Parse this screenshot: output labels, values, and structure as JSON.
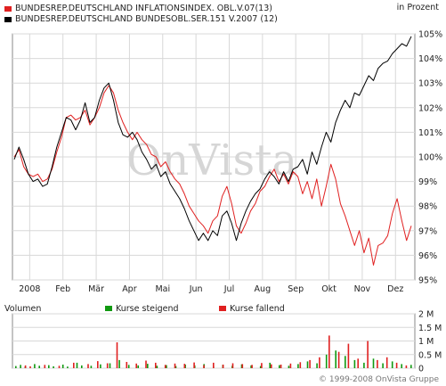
{
  "header": {
    "unit_label": "in Prozent"
  },
  "legend": [
    {
      "label": "BUNDESREP.DEUTSCHLAND INFLATIONSINDEX. OBL.V.07(13)",
      "color": "#e02020"
    },
    {
      "label": "BUNDESREP.DEUTSCHLAND BUNDESOBL.SER.151 V.2007 (12)",
      "color": "#000000"
    }
  ],
  "watermark": "OnVista",
  "volume_panel": {
    "title": "Volumen",
    "rising_label": "Kurse steigend",
    "falling_label": "Kurse fallend",
    "rising_color": "#119911",
    "falling_color": "#e02020"
  },
  "copyright": "© 1999-2008 OnVista Gruppe",
  "chart_data": [
    {
      "type": "line",
      "ylabel": "in Prozent",
      "ylim": [
        95,
        105
      ],
      "y_ticks": [
        "95%",
        "96%",
        "97%",
        "98%",
        "99%",
        "100%",
        "101%",
        "102%",
        "103%",
        "104%",
        "105%"
      ],
      "x_ticks": [
        "2008",
        "Feb",
        "Mär",
        "Apr",
        "Mai",
        "Jun",
        "Jul",
        "Aug",
        "Sep",
        "Okt",
        "Nov",
        "Dez"
      ],
      "grid": true,
      "series": [
        {
          "name": "BUNDESREP.DEUTSCHLAND INFLATIONSINDEX. OBL.V.07(13)",
          "color": "#e02020",
          "values": [
            100.0,
            100.3,
            99.6,
            99.3,
            99.2,
            99.3,
            99.0,
            99.1,
            99.5,
            100.2,
            100.8,
            101.6,
            101.7,
            101.5,
            101.6,
            101.9,
            101.3,
            101.6,
            102.0,
            102.6,
            102.9,
            102.6,
            101.9,
            101.4,
            101.0,
            100.7,
            101.0,
            100.7,
            100.5,
            100.1,
            100.0,
            99.6,
            99.8,
            99.4,
            99.1,
            98.9,
            98.5,
            98.0,
            97.7,
            97.4,
            97.2,
            96.9,
            97.4,
            97.6,
            98.4,
            98.8,
            98.1,
            97.2,
            96.9,
            97.3,
            97.8,
            98.1,
            98.6,
            98.8,
            99.2,
            99.5,
            99.0,
            99.3,
            98.9,
            99.4,
            99.2,
            98.5,
            99.0,
            98.3,
            99.1,
            98.0,
            98.8,
            99.7,
            99.1,
            98.1,
            97.6,
            97.0,
            96.4,
            97.0,
            96.1,
            96.7,
            95.6,
            96.4,
            96.5,
            96.8,
            97.7,
            98.3,
            97.4,
            96.6,
            97.2
          ]
        },
        {
          "name": "BUNDESREP.DEUTSCHLAND BUNDESOBL.SER.151 V.2007 (12)",
          "color": "#000000",
          "values": [
            99.9,
            100.4,
            99.9,
            99.3,
            99.0,
            99.1,
            98.8,
            98.9,
            99.6,
            100.4,
            101.0,
            101.6,
            101.5,
            101.1,
            101.5,
            102.2,
            101.4,
            101.6,
            102.3,
            102.8,
            103.0,
            102.3,
            101.4,
            100.9,
            100.8,
            101.0,
            100.7,
            100.2,
            99.9,
            99.5,
            99.7,
            99.2,
            99.4,
            98.9,
            98.6,
            98.3,
            97.9,
            97.4,
            97.0,
            96.6,
            96.9,
            96.6,
            97.0,
            96.8,
            97.6,
            97.8,
            97.3,
            96.6,
            97.3,
            97.8,
            98.2,
            98.5,
            98.7,
            99.1,
            99.4,
            99.2,
            98.9,
            99.4,
            99.0,
            99.5,
            99.6,
            99.9,
            99.3,
            100.2,
            99.7,
            100.4,
            101.0,
            100.6,
            101.4,
            101.9,
            102.3,
            102.0,
            102.6,
            102.5,
            102.9,
            103.3,
            103.1,
            103.6,
            103.8,
            103.9,
            104.2,
            104.4,
            104.6,
            104.5,
            104.9
          ]
        }
      ]
    },
    {
      "type": "bar",
      "ylabel": "Volumen",
      "ylim": [
        0,
        2000000
      ],
      "y_ticks": [
        "0",
        "0.5 M",
        "1 M",
        "1.5 M",
        "2 M"
      ],
      "series": [
        {
          "name": "Kurse steigend",
          "color": "#119911",
          "values": [
            80000,
            120000,
            60000,
            0,
            150000,
            90000,
            0,
            110000,
            70000,
            0,
            130000,
            60000,
            0,
            200000,
            100000,
            0,
            90000,
            0,
            140000,
            0,
            180000,
            0,
            300000,
            0,
            120000,
            0,
            100000,
            0,
            160000,
            0,
            90000,
            0,
            110000,
            0,
            80000,
            0,
            130000,
            0,
            100000,
            0,
            150000,
            0,
            70000,
            0,
            120000,
            0,
            90000,
            0,
            140000,
            0,
            100000,
            0,
            80000,
            0,
            200000,
            0,
            110000,
            0,
            90000,
            0,
            150000,
            0,
            250000,
            0,
            180000,
            0,
            500000,
            0,
            650000,
            0,
            450000,
            0,
            300000,
            0,
            200000,
            0,
            350000,
            0,
            180000,
            0,
            250000,
            0,
            150000,
            0,
            120000
          ]
        },
        {
          "name": "Kurse fallend",
          "color": "#e02020",
          "values": [
            0,
            0,
            100000,
            70000,
            0,
            0,
            120000,
            0,
            0,
            90000,
            0,
            0,
            200000,
            0,
            0,
            150000,
            0,
            260000,
            0,
            180000,
            0,
            950000,
            0,
            230000,
            0,
            170000,
            0,
            280000,
            0,
            200000,
            0,
            120000,
            0,
            170000,
            0,
            160000,
            0,
            210000,
            0,
            110000,
            0,
            200000,
            0,
            130000,
            0,
            180000,
            0,
            150000,
            0,
            120000,
            0,
            190000,
            0,
            140000,
            0,
            130000,
            0,
            170000,
            0,
            220000,
            0,
            300000,
            0,
            400000,
            0,
            1200000,
            0,
            600000,
            0,
            900000,
            0,
            350000,
            0,
            1000000,
            0,
            300000,
            0,
            400000,
            0,
            200000,
            0,
            100000,
            0
          ]
        }
      ]
    }
  ]
}
